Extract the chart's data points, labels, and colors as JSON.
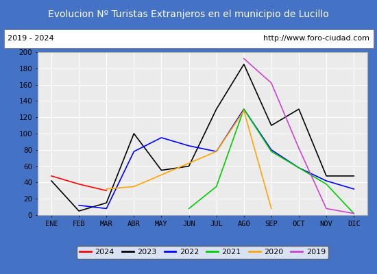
{
  "title": "Evolucion Nº Turistas Extranjeros en el municipio de Lucillo",
  "subtitle_left": "2019 - 2024",
  "subtitle_right": "http://www.foro-ciudad.com",
  "xlabel_months": [
    "ENE",
    "FEB",
    "MAR",
    "ABR",
    "MAY",
    "JUN",
    "JUL",
    "AGO",
    "SEP",
    "OCT",
    "NOV",
    "DIC"
  ],
  "ylim": [
    0,
    200
  ],
  "yticks": [
    0,
    20,
    40,
    60,
    80,
    100,
    120,
    140,
    160,
    180,
    200
  ],
  "series": {
    "2024": {
      "color": "#ff0000",
      "values": [
        48,
        38,
        30,
        null,
        null,
        null,
        null,
        null,
        null,
        null,
        null,
        null
      ]
    },
    "2023": {
      "color": "#000000",
      "values": [
        42,
        5,
        15,
        100,
        55,
        60,
        130,
        185,
        110,
        130,
        48,
        48
      ]
    },
    "2022": {
      "color": "#0000ff",
      "values": [
        null,
        12,
        8,
        78,
        95,
        85,
        78,
        130,
        80,
        58,
        42,
        32
      ]
    },
    "2021": {
      "color": "#00cc00",
      "values": [
        null,
        null,
        null,
        null,
        null,
        8,
        35,
        130,
        78,
        58,
        38,
        2
      ]
    },
    "2020": {
      "color": "#ffa500",
      "values": [
        null,
        null,
        32,
        35,
        null,
        null,
        78,
        128,
        8,
        null,
        null,
        null
      ]
    },
    "2019": {
      "color": "#cc44cc",
      "values": [
        null,
        null,
        null,
        null,
        null,
        null,
        null,
        192,
        162,
        82,
        8,
        2
      ]
    }
  },
  "legend_order": [
    "2024",
    "2023",
    "2022",
    "2021",
    "2020",
    "2019"
  ],
  "title_bg_color": "#4472c4",
  "title_fg_color": "#ffffff",
  "plot_bg_color": "#ebebeb",
  "grid_color": "#ffffff",
  "subtitle_bg_color": "#ffffff",
  "border_color": "#aaaaaa",
  "title_fontsize": 10,
  "subtitle_fontsize": 8,
  "axis_label_fontsize": 7.5,
  "legend_fontsize": 8
}
